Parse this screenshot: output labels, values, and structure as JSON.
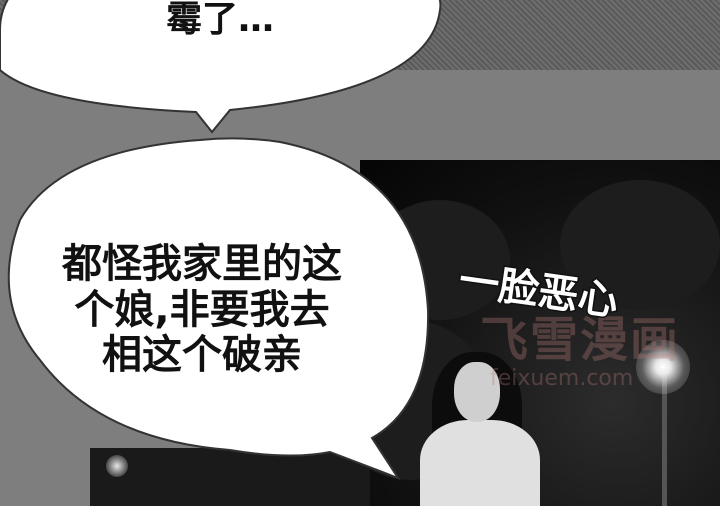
{
  "bubbles": {
    "top_text": "霉了…",
    "main_lines": [
      "都怪我家里的这",
      "个娘,非要我去",
      "相这个破亲"
    ]
  },
  "sound_effect": "一脸恶心",
  "watermark": {
    "big": "飞雪漫画",
    "url": "feixuem.com"
  }
}
